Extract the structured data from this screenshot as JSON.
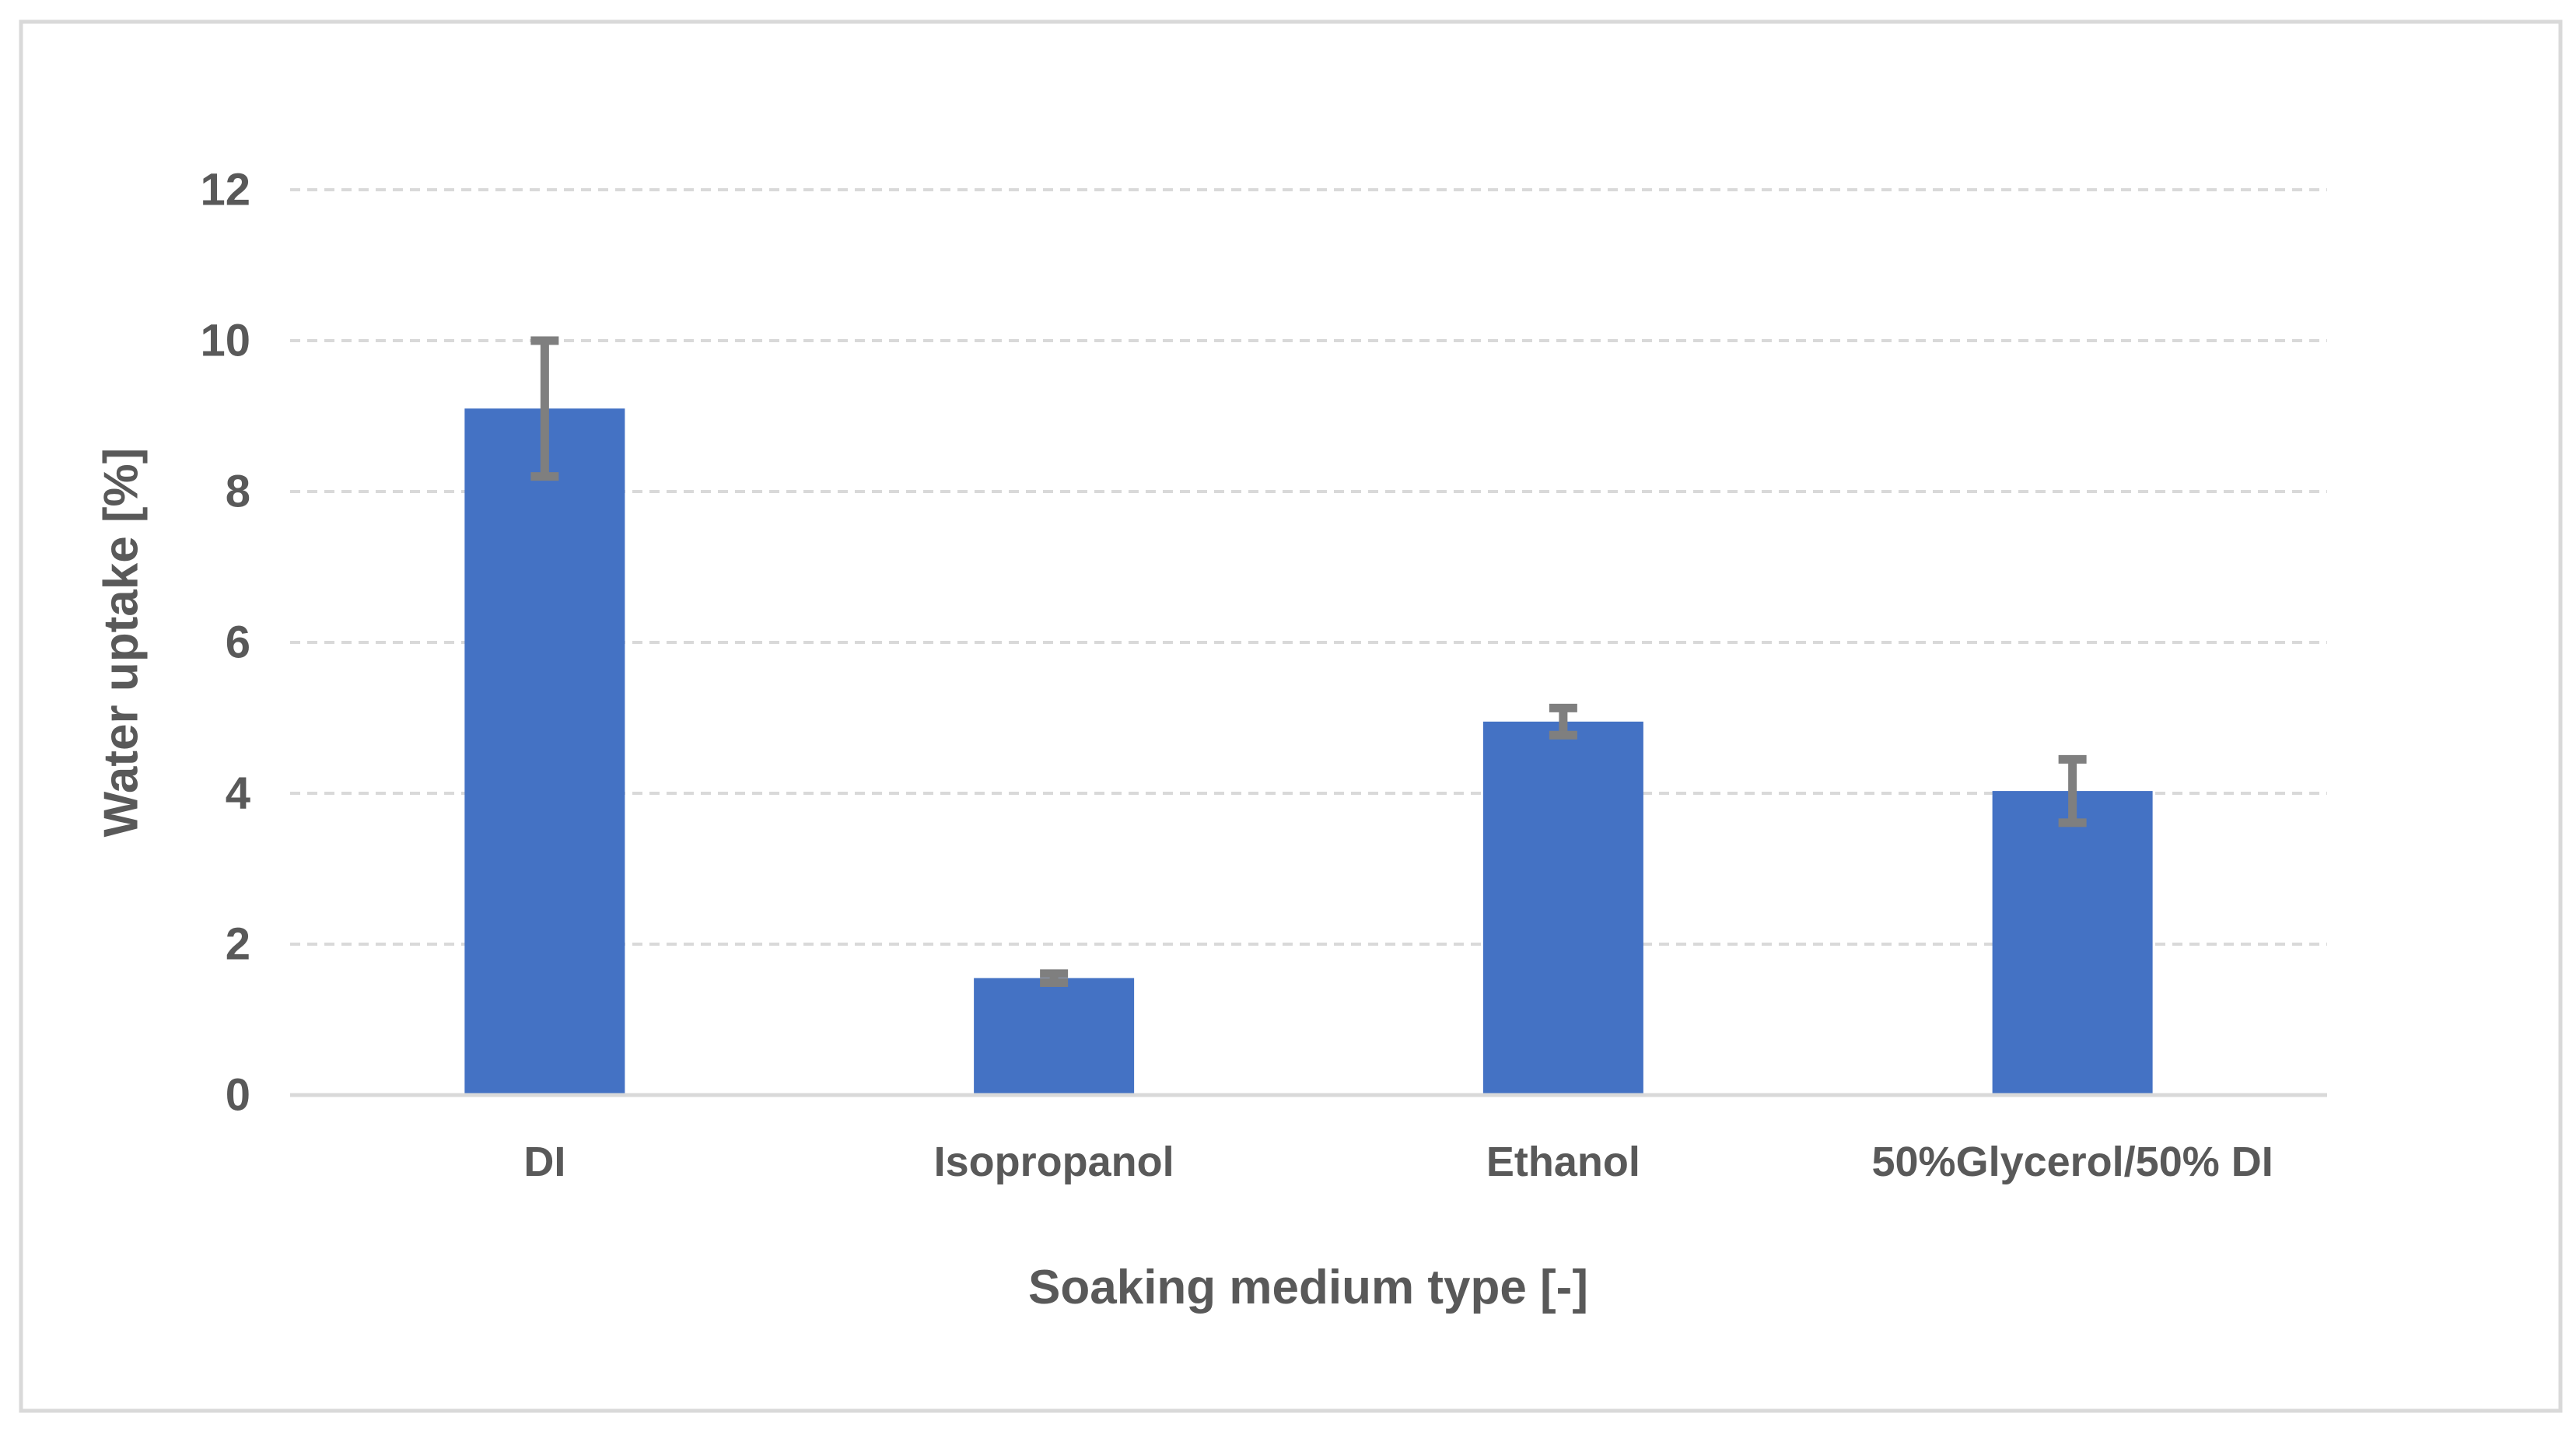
{
  "chart_data": {
    "type": "bar",
    "title": "",
    "xlabel": "Soaking medium type [-]",
    "ylabel": "Water uptake [%]",
    "categories": [
      "DI",
      "Isopropanol",
      "Ethanol",
      "50%Glycerol/50% DI"
    ],
    "values": [
      9.1,
      1.55,
      4.95,
      4.03
    ],
    "error_bars": [
      0.9,
      0.06,
      0.18,
      0.42
    ],
    "ylim": [
      0,
      12
    ],
    "yticks": [
      0,
      2,
      4,
      6,
      8,
      10,
      12
    ],
    "grid": "horizontal-dashed",
    "legend": "none",
    "colors": {
      "bar_fill": "#4472C4",
      "error_bar": "#7F7F7F",
      "gridline": "#D9D9D9",
      "axis_line": "#D9D9D9",
      "text": "#595959",
      "frame_border": "#D9D9D9",
      "background": "#FFFFFF"
    }
  }
}
